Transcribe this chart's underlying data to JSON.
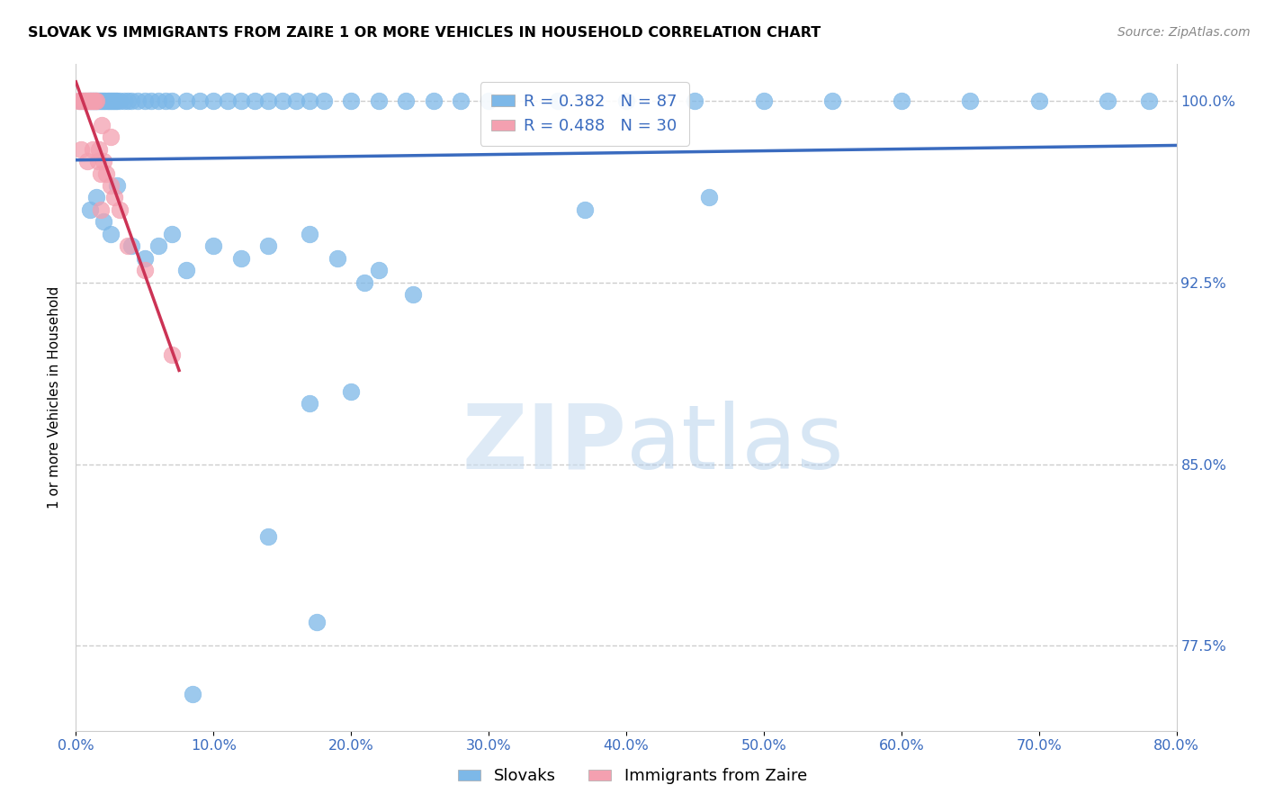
{
  "title": "SLOVAK VS IMMIGRANTS FROM ZAIRE 1 OR MORE VEHICLES IN HOUSEHOLD CORRELATION CHART",
  "source": "Source: ZipAtlas.com",
  "ylabel": "1 or more Vehicles in Household",
  "xmin": 0.0,
  "xmax": 80.0,
  "ymin": 74.0,
  "ymax": 101.5,
  "yticks": [
    100.0,
    92.5,
    85.0,
    77.5
  ],
  "xticks": [
    0.0,
    10.0,
    20.0,
    30.0,
    40.0,
    50.0,
    60.0,
    70.0,
    80.0
  ],
  "blue_color": "#7db8e8",
  "pink_color": "#f4a0b0",
  "blue_line_color": "#3a6bbf",
  "pink_line_color": "#cc3355",
  "legend_blue_label": "R = 0.382   N = 87",
  "legend_pink_label": "R = 0.488   N = 30",
  "legend_label_slovaks": "Slovaks",
  "legend_label_zaire": "Immigrants from Zaire",
  "blue_x": [
    0.3,
    0.5,
    0.7,
    0.9,
    1.0,
    1.1,
    1.2,
    1.3,
    1.4,
    1.5,
    1.6,
    1.7,
    1.8,
    1.9,
    2.0,
    2.1,
    2.2,
    2.3,
    2.4,
    2.5,
    2.6,
    2.7,
    2.8,
    2.9,
    3.0,
    3.2,
    3.5,
    3.8,
    4.0,
    4.5,
    5.0,
    5.5,
    6.0,
    6.5,
    7.0,
    8.0,
    9.0,
    10.0,
    11.0,
    12.0,
    13.0,
    14.0,
    15.0,
    16.0,
    17.0,
    18.0,
    20.0,
    22.0,
    24.0,
    26.0,
    28.0,
    30.0,
    35.0,
    40.0,
    45.0,
    50.0,
    55.0,
    60.0,
    65.0,
    70.0,
    75.0,
    78.0,
    1.0,
    1.5,
    2.0,
    2.5,
    3.0,
    4.0,
    5.0,
    6.0,
    7.0,
    8.0,
    10.0,
    12.0,
    14.0,
    17.0,
    19.0,
    21.0,
    22.0,
    24.5,
    14.0,
    17.5,
    20.0,
    46.0,
    37.0,
    17.0,
    8.5
  ],
  "blue_y": [
    100.0,
    100.0,
    100.0,
    100.0,
    100.0,
    100.0,
    100.0,
    100.0,
    100.0,
    100.0,
    100.0,
    100.0,
    100.0,
    100.0,
    100.0,
    100.0,
    100.0,
    100.0,
    100.0,
    100.0,
    100.0,
    100.0,
    100.0,
    100.0,
    100.0,
    100.0,
    100.0,
    100.0,
    100.0,
    100.0,
    100.0,
    100.0,
    100.0,
    100.0,
    100.0,
    100.0,
    100.0,
    100.0,
    100.0,
    100.0,
    100.0,
    100.0,
    100.0,
    100.0,
    100.0,
    100.0,
    100.0,
    100.0,
    100.0,
    100.0,
    100.0,
    100.0,
    100.0,
    100.0,
    100.0,
    100.0,
    100.0,
    100.0,
    100.0,
    100.0,
    100.0,
    100.0,
    95.5,
    96.0,
    95.0,
    94.5,
    96.5,
    94.0,
    93.5,
    94.0,
    94.5,
    93.0,
    94.0,
    93.5,
    94.0,
    94.5,
    93.5,
    92.5,
    93.0,
    92.0,
    82.0,
    78.5,
    88.0,
    96.0,
    95.5,
    87.5,
    75.5
  ],
  "pink_x": [
    0.2,
    0.3,
    0.5,
    0.6,
    0.7,
    0.8,
    0.9,
    1.0,
    1.1,
    1.2,
    1.3,
    1.4,
    1.5,
    1.6,
    1.7,
    1.8,
    1.9,
    2.0,
    2.2,
    2.5,
    2.8,
    3.2,
    3.8,
    5.0,
    7.0,
    0.4,
    0.8,
    1.2,
    1.8,
    2.5
  ],
  "pink_y": [
    100.0,
    100.0,
    100.0,
    100.0,
    100.0,
    100.0,
    100.0,
    100.0,
    100.0,
    100.0,
    100.0,
    100.0,
    100.0,
    97.5,
    98.0,
    97.0,
    99.0,
    97.5,
    97.0,
    98.5,
    96.0,
    95.5,
    94.0,
    93.0,
    89.5,
    98.0,
    97.5,
    98.0,
    95.5,
    96.5
  ]
}
